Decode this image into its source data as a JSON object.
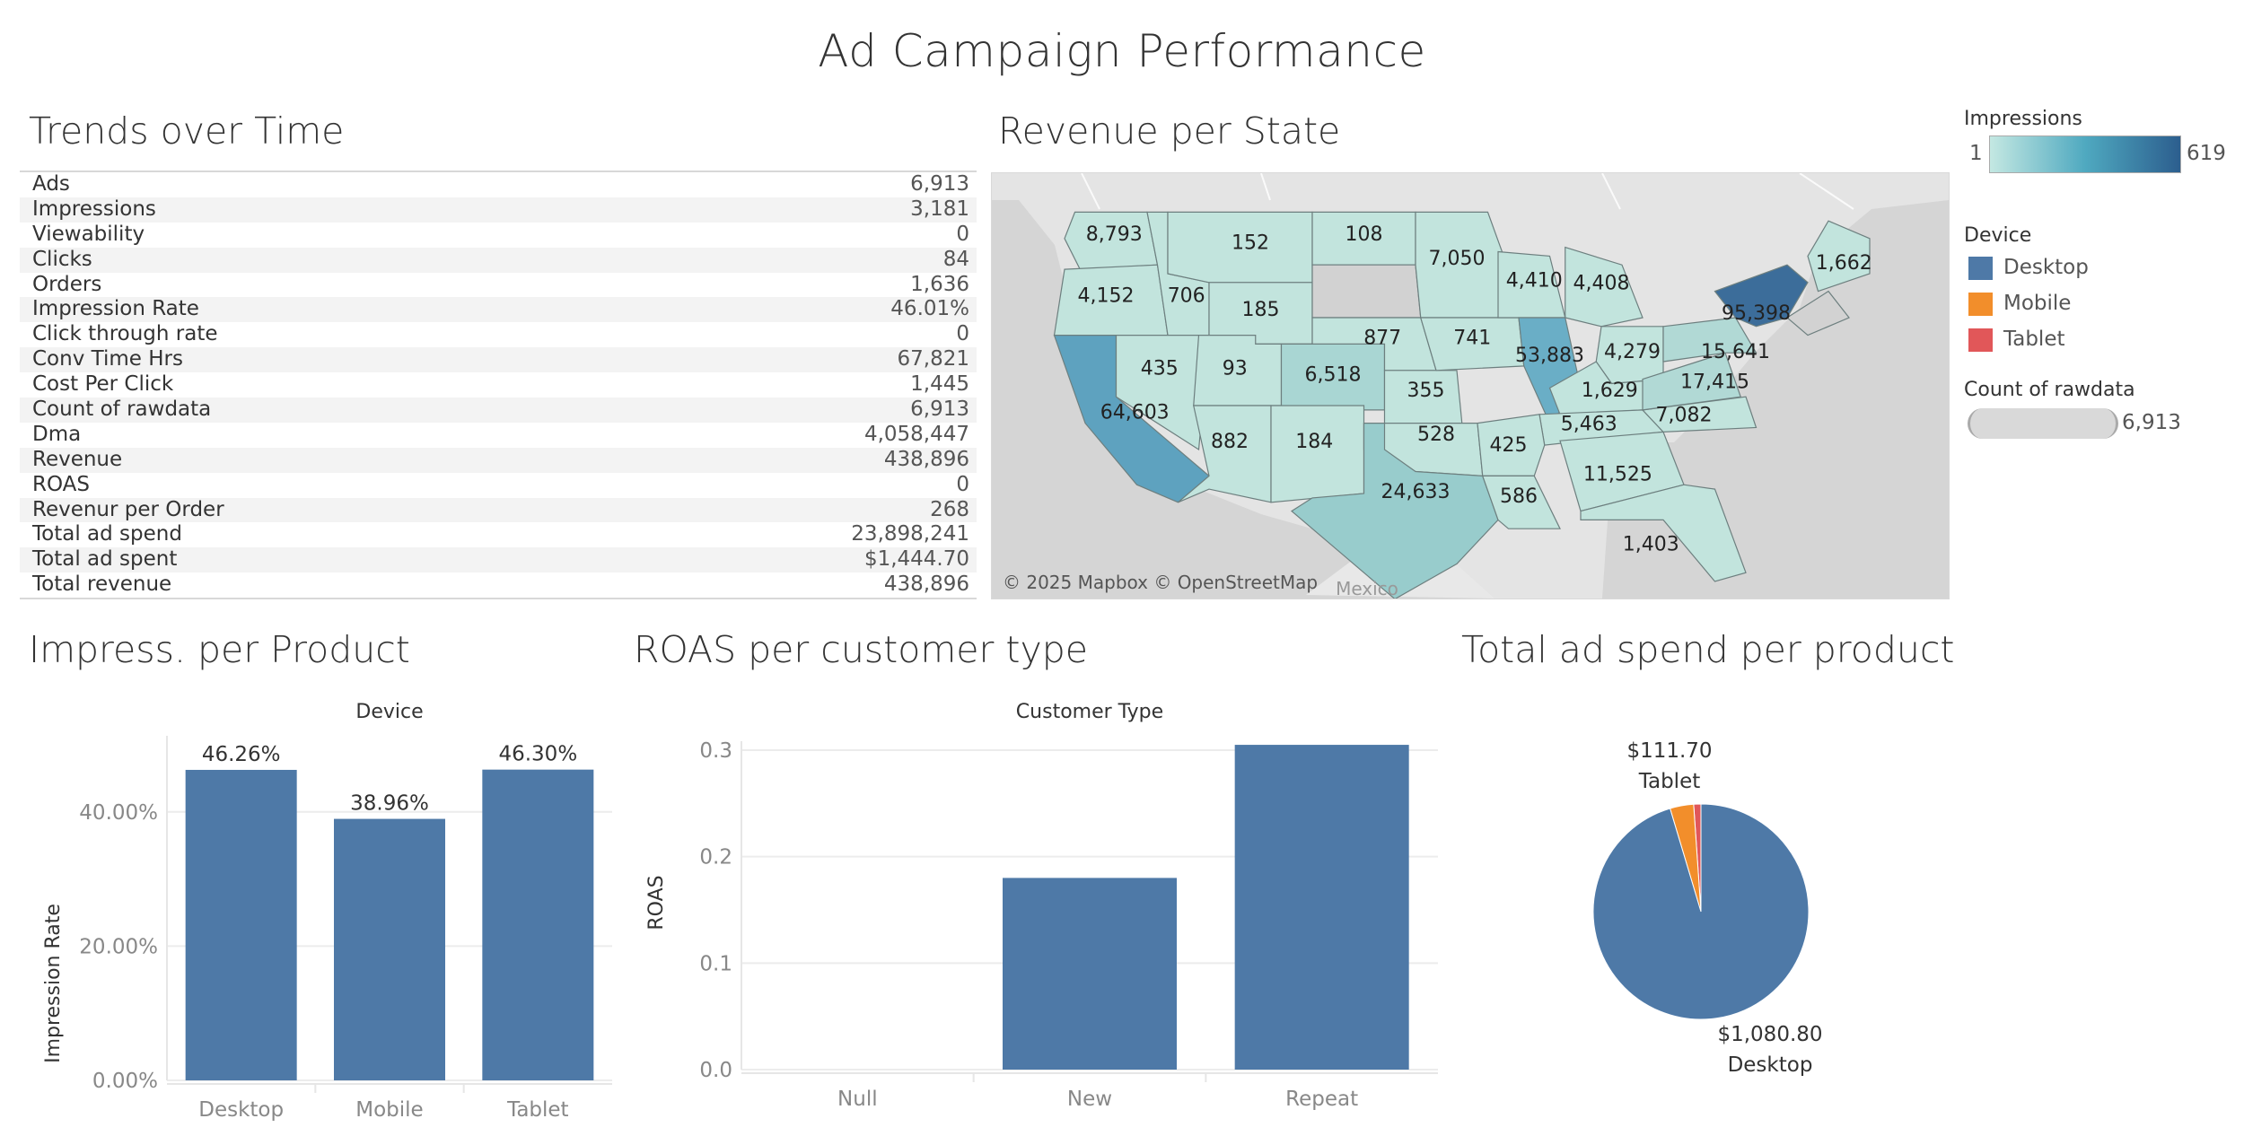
{
  "dashboard": {
    "title": "Ad Campaign Performance"
  },
  "trends": {
    "title": "Trends over Time",
    "rows": [
      {
        "label": "Ads",
        "value": "6,913"
      },
      {
        "label": "Impressions",
        "value": "3,181"
      },
      {
        "label": "Viewability",
        "value": "0"
      },
      {
        "label": "Clicks",
        "value": "84"
      },
      {
        "label": "Orders",
        "value": "1,636"
      },
      {
        "label": "Impression Rate",
        "value": "46.01%"
      },
      {
        "label": "Click through rate",
        "value": "0"
      },
      {
        "label": "Conv Time Hrs",
        "value": "67,821"
      },
      {
        "label": "Cost Per Click",
        "value": "1,445"
      },
      {
        "label": "Count of rawdata",
        "value": "6,913"
      },
      {
        "label": "Dma",
        "value": "4,058,447"
      },
      {
        "label": "Revenue",
        "value": "438,896"
      },
      {
        "label": "ROAS",
        "value": "0"
      },
      {
        "label": "Revenur per Order",
        "value": "268"
      },
      {
        "label": "Total ad spend",
        "value": "23,898,241"
      },
      {
        "label": "Total ad spent",
        "value": "$1,444.70"
      },
      {
        "label": "Total revenue",
        "value": "438,896"
      }
    ]
  },
  "map": {
    "title": "Revenue per State",
    "attribution": "© 2025 Mapbox © OpenStreetMap",
    "country_label": "Mexico",
    "state_values": [
      {
        "state": "WA",
        "value": "8,793"
      },
      {
        "state": "MT",
        "value": "152"
      },
      {
        "state": "ND",
        "value": "108"
      },
      {
        "state": "MN",
        "value": "7,050"
      },
      {
        "state": "ME",
        "value": "1,662"
      },
      {
        "state": "OR",
        "value": "4,152"
      },
      {
        "state": "ID",
        "value": "706"
      },
      {
        "state": "WY",
        "value": "185"
      },
      {
        "state": "WI",
        "value": "4,410"
      },
      {
        "state": "MI",
        "value": "4,408"
      },
      {
        "state": "NY",
        "value": "95,398"
      },
      {
        "state": "NE",
        "value": "877"
      },
      {
        "state": "IA",
        "value": "741"
      },
      {
        "state": "NV",
        "value": "435"
      },
      {
        "state": "UT",
        "value": "93"
      },
      {
        "state": "CO",
        "value": "6,518"
      },
      {
        "state": "KS",
        "value": "355"
      },
      {
        "state": "IL",
        "value": "53,883"
      },
      {
        "state": "OH",
        "value": "4,279"
      },
      {
        "state": "PA",
        "value": "15,641"
      },
      {
        "state": "CA",
        "value": "64,603"
      },
      {
        "state": "KY",
        "value": "1,629"
      },
      {
        "state": "VA",
        "value": "17,415"
      },
      {
        "state": "TN",
        "value": "5,463"
      },
      {
        "state": "NC",
        "value": "7,082"
      },
      {
        "state": "AZ",
        "value": "882"
      },
      {
        "state": "NM",
        "value": "184"
      },
      {
        "state": "OK",
        "value": "528"
      },
      {
        "state": "AR",
        "value": "425"
      },
      {
        "state": "GA",
        "value": "11,525"
      },
      {
        "state": "TX",
        "value": "24,633"
      },
      {
        "state": "LA",
        "value": "586"
      },
      {
        "state": "FL",
        "value": "1,403"
      }
    ]
  },
  "legends": {
    "impressions": {
      "title": "Impressions",
      "min": "1",
      "max": "619"
    },
    "device": {
      "title": "Device",
      "items": [
        {
          "label": "Desktop",
          "color": "#4e79a7"
        },
        {
          "label": "Mobile",
          "color": "#f28e2b"
        },
        {
          "label": "Tablet",
          "color": "#e15759"
        }
      ]
    },
    "count": {
      "title": "Count of rawdata",
      "value": "6,913"
    }
  },
  "colors": {
    "bar": "#4e79a7",
    "map_low": "#c2e4dd",
    "map_mid": "#8fc7cf",
    "map_high": "#3c6d9a"
  },
  "chart_data": [
    {
      "id": "impress",
      "sheet_title": "Impress. per Product",
      "type": "bar",
      "title": "Device",
      "ylabel": "Impression Rate",
      "categories": [
        "Desktop",
        "Mobile",
        "Tablet"
      ],
      "values": [
        46.26,
        38.96,
        46.3
      ],
      "value_labels": [
        "46.26%",
        "38.96%",
        "46.30%"
      ],
      "yticks": [
        0,
        20,
        40
      ],
      "ytick_labels": [
        "0.00%",
        "20.00%",
        "40.00%"
      ],
      "ylim": [
        0,
        50
      ]
    },
    {
      "id": "roas",
      "sheet_title": "ROAS per customer type",
      "type": "bar",
      "title": "Customer Type",
      "ylabel": "ROAS",
      "categories": [
        "Null",
        "New",
        "Repeat"
      ],
      "values": [
        0,
        0.18,
        0.305
      ],
      "yticks": [
        0,
        0.1,
        0.2,
        0.3
      ],
      "ytick_labels": [
        "0.0",
        "0.1",
        "0.2",
        "0.3"
      ],
      "ylim": [
        0,
        0.3
      ]
    },
    {
      "id": "spend",
      "sheet_title": "Total ad spend per product",
      "type": "pie",
      "slices": [
        {
          "label": "Desktop",
          "value": 1080.8,
          "value_label": "$1,080.80"
        },
        {
          "label": "Mobile",
          "value": 43.85
        },
        {
          "label": "Tablet",
          "value": 111.7,
          "value_label": "$111.70"
        }
      ]
    }
  ]
}
